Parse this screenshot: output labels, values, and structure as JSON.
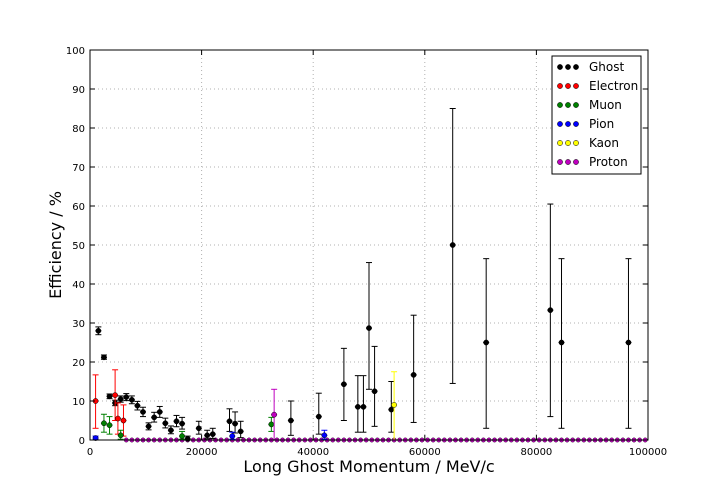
{
  "chart_data": {
    "type": "scatter",
    "title": "",
    "xlabel": "Long Ghost Momentum / MeV/c",
    "ylabel": "Efficiency / %",
    "xlim": [
      0,
      100000
    ],
    "ylim": [
      0,
      100
    ],
    "x_ticks": [
      0,
      20000,
      40000,
      60000,
      80000,
      100000
    ],
    "y_ticks": [
      0,
      10,
      20,
      30,
      40,
      50,
      60,
      70,
      80,
      90,
      100
    ],
    "x_tick_labels": [
      "0",
      "20000",
      "40000",
      "60000",
      "80000",
      "100000"
    ],
    "y_tick_labels": [
      "0",
      "10",
      "20",
      "30",
      "40",
      "50",
      "60",
      "70",
      "80",
      "90",
      "100"
    ],
    "grid": true,
    "legend_position": "top-right",
    "series": [
      {
        "name": "Ghost",
        "color": "#000000",
        "points": [
          {
            "x": 1500,
            "y": 28,
            "lo": 27,
            "hi": 29
          },
          {
            "x": 2500,
            "y": 21.2,
            "lo": 20.7,
            "hi": 21.8
          },
          {
            "x": 3500,
            "y": 11.2,
            "lo": 10.6,
            "hi": 11.8
          },
          {
            "x": 4500,
            "y": 9.5,
            "lo": 8.8,
            "hi": 10.2
          },
          {
            "x": 5500,
            "y": 10.5,
            "lo": 9.7,
            "hi": 11.3
          },
          {
            "x": 6500,
            "y": 11,
            "lo": 10.1,
            "hi": 11.9
          },
          {
            "x": 7500,
            "y": 10.3,
            "lo": 9.3,
            "hi": 11.3
          },
          {
            "x": 8500,
            "y": 8.8,
            "lo": 7.7,
            "hi": 9.9
          },
          {
            "x": 9500,
            "y": 7.2,
            "lo": 6.0,
            "hi": 8.4
          },
          {
            "x": 10500,
            "y": 3.5,
            "lo": 2.6,
            "hi": 4.4
          },
          {
            "x": 11500,
            "y": 5.8,
            "lo": 4.6,
            "hi": 7.1
          },
          {
            "x": 12500,
            "y": 7.2,
            "lo": 5.8,
            "hi": 8.6
          },
          {
            "x": 13500,
            "y": 4.3,
            "lo": 3.1,
            "hi": 5.6
          },
          {
            "x": 14500,
            "y": 2.5,
            "lo": 1.6,
            "hi": 3.6
          },
          {
            "x": 15500,
            "y": 4.8,
            "lo": 3.4,
            "hi": 6.3
          },
          {
            "x": 16500,
            "y": 4.2,
            "lo": 2.8,
            "hi": 5.8
          },
          {
            "x": 17500,
            "y": 0.3,
            "lo": 0,
            "hi": 1.0
          },
          {
            "x": 19500,
            "y": 3,
            "lo": 1.5,
            "hi": 4.8
          },
          {
            "x": 21000,
            "y": 1.2,
            "lo": 0.3,
            "hi": 2.5
          },
          {
            "x": 22000,
            "y": 1.5,
            "lo": 0.4,
            "hi": 3.0
          },
          {
            "x": 25000,
            "y": 4.8,
            "lo": 2.2,
            "hi": 8.0
          },
          {
            "x": 26000,
            "y": 4.2,
            "lo": 1.8,
            "hi": 7.2
          },
          {
            "x": 27000,
            "y": 2.2,
            "lo": 0.6,
            "hi": 4.8
          },
          {
            "x": 36000,
            "y": 5,
            "lo": 1.2,
            "hi": 10.0
          },
          {
            "x": 41000,
            "y": 6,
            "lo": 1.5,
            "hi": 12.0
          },
          {
            "x": 45500,
            "y": 14.3,
            "lo": 5.0,
            "hi": 23.5
          },
          {
            "x": 48000,
            "y": 8.5,
            "lo": 2.0,
            "hi": 16.5
          },
          {
            "x": 49000,
            "y": 8.5,
            "lo": 2.0,
            "hi": 16.5
          },
          {
            "x": 50000,
            "y": 28.7,
            "lo": 13.0,
            "hi": 45.5
          },
          {
            "x": 51000,
            "y": 12.5,
            "lo": 3.5,
            "hi": 24.0
          },
          {
            "x": 54000,
            "y": 7.8,
            "lo": 2.0,
            "hi": 15.0
          },
          {
            "x": 58000,
            "y": 16.7,
            "lo": 4.5,
            "hi": 32.0
          },
          {
            "x": 65000,
            "y": 50,
            "lo": 14.5,
            "hi": 85.0
          },
          {
            "x": 71000,
            "y": 25,
            "lo": 3.0,
            "hi": 46.5
          },
          {
            "x": 82500,
            "y": 33.3,
            "lo": 6.0,
            "hi": 60.5
          },
          {
            "x": 84500,
            "y": 25,
            "lo": 3.0,
            "hi": 46.5
          },
          {
            "x": 96500,
            "y": 25,
            "lo": 3.0,
            "hi": 46.5
          }
        ]
      },
      {
        "name": "Electron",
        "color": "#ff0000",
        "points": [
          {
            "x": 1000,
            "y": 10,
            "lo": 3.0,
            "hi": 16.7
          },
          {
            "x": 4500,
            "y": 11.5,
            "lo": 5.0,
            "hi": 18.0
          },
          {
            "x": 5000,
            "y": 5.5,
            "lo": 1.5,
            "hi": 9.5
          },
          {
            "x": 6000,
            "y": 5.0,
            "lo": 1.0,
            "hi": 9.0
          }
        ]
      },
      {
        "name": "Muon",
        "color": "#008000",
        "points": [
          {
            "x": 2500,
            "y": 4.3,
            "lo": 2.0,
            "hi": 6.6
          },
          {
            "x": 3500,
            "y": 3.8,
            "lo": 1.5,
            "hi": 6.0
          },
          {
            "x": 5500,
            "y": 1.2,
            "lo": 0.2,
            "hi": 2.5
          },
          {
            "x": 16500,
            "y": 1.0,
            "lo": 0.2,
            "hi": 2.2
          },
          {
            "x": 32500,
            "y": 4.0,
            "lo": 2.2,
            "hi": 5.8
          }
        ]
      },
      {
        "name": "Pion",
        "color": "#0000ff",
        "points": [
          {
            "x": 1000,
            "y": 0.5,
            "lo": 0.1,
            "hi": 1.0
          },
          {
            "x": 25500,
            "y": 1.0,
            "lo": 0.2,
            "hi": 2.0
          },
          {
            "x": 42000,
            "y": 1.2,
            "lo": 0.2,
            "hi": 2.5
          }
        ]
      },
      {
        "name": "Kaon",
        "color": "#ffff00",
        "points": [
          {
            "x": 54500,
            "y": 9.0,
            "lo": 0,
            "hi": 17.5
          }
        ]
      },
      {
        "name": "Proton",
        "color": "#bf00bf",
        "points": [
          {
            "x": 33000,
            "y": 6.5,
            "lo": 0,
            "hi": 13.0
          }
        ]
      }
    ],
    "zero_baseline_x": [
      6500,
      7500,
      8500,
      9500,
      10500,
      11500,
      12500,
      13500,
      14500,
      15500,
      16500,
      17500,
      18500,
      19500,
      20500,
      21500,
      22500,
      23500,
      24500,
      25500,
      26500,
      27500,
      28500,
      29500,
      30500,
      31500,
      32500,
      33500,
      34500,
      35500,
      36500,
      37500,
      38500,
      39500,
      40500,
      41500,
      42500,
      43500,
      44500,
      45500,
      46500,
      47500,
      48500,
      49500,
      50500,
      51500,
      52500,
      53500,
      54500,
      55500,
      56500,
      57500,
      58500,
      59500,
      60500,
      61500,
      62500,
      63500,
      64500,
      65500,
      66500,
      67500,
      68500,
      69500,
      70500,
      71500,
      72500,
      73500,
      74500,
      75500,
      76500,
      77500,
      78500,
      79500,
      80500,
      81500,
      82500,
      83500,
      84500,
      85500,
      86500,
      87500,
      88500,
      89500,
      90500,
      91500,
      92500,
      93500,
      94500,
      95500,
      96500,
      97500,
      98500,
      99500
    ],
    "zero_baseline_color": "#bf00bf"
  }
}
